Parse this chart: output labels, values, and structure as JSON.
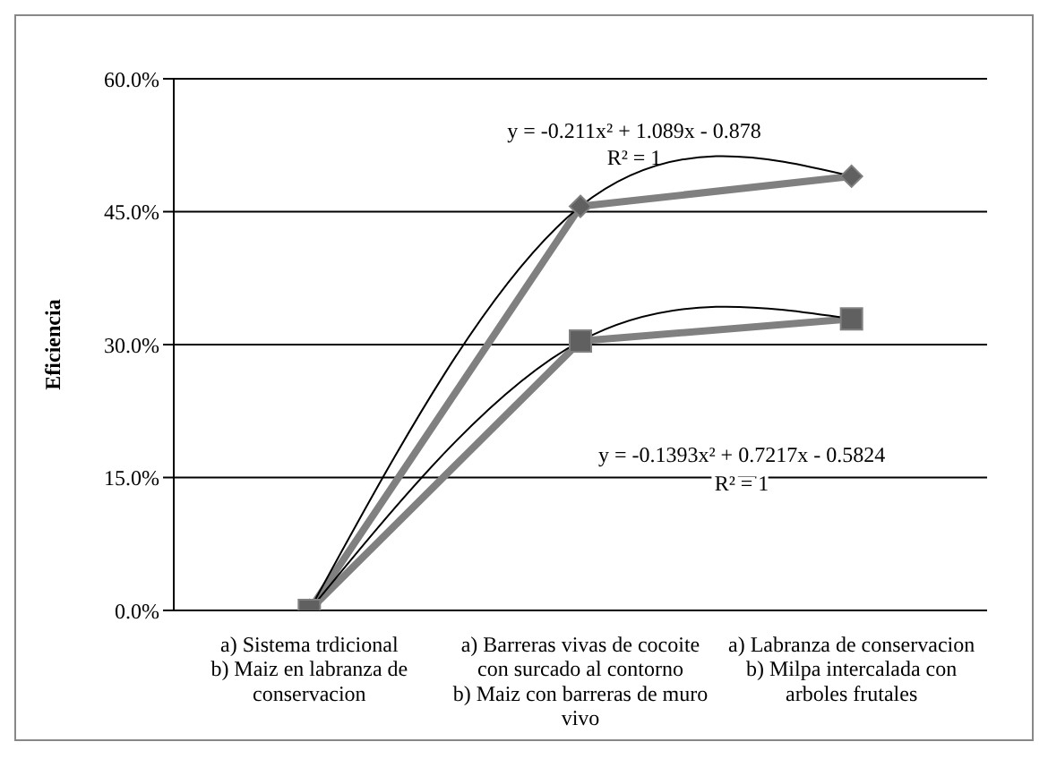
{
  "chart_data": {
    "type": "line",
    "ylabel": "Eficiencia",
    "categories": [
      "a) Sistema trdicional\nb) Maiz en labranza de conservacion",
      "a) Barreras vivas de cocoite con surcado al contorno\nb) Maiz con barreras de muro vivo",
      "a) Labranza de conservacion\nb) Milpa intercalada con arboles frutales"
    ],
    "series": [
      {
        "color": "#808080",
        "values": [
          0,
          0.456,
          0.49
        ],
        "marker": "diamond"
      },
      {
        "color": "#808080",
        "values": [
          0,
          0.304,
          0.329
        ],
        "marker": "square"
      },
      {
        "type": "line",
        "color": "#000000",
        "marker": "none",
        "values": [
          0,
          0.456,
          0.49
        ]
      },
      {
        "type": "line",
        "color": "#000000",
        "marker": "none",
        "values": [
          0,
          0.304,
          0.329
        ]
      }
    ],
    "ylim": [
      0,
      0.6
    ],
    "yticks": [
      {
        "value": 0,
        "label": "0.0%"
      },
      {
        "value": 0.15,
        "label": "15.0%"
      },
      {
        "value": 0.3,
        "label": "30.0%"
      },
      {
        "value": 0.45,
        "label": "45.0%"
      },
      {
        "value": 0.6,
        "label": "60.0%"
      }
    ],
    "grid": "y",
    "legend": false,
    "line_style": "solid",
    "annotations": [
      "y = -0.211x² + 1.089x - 0.878",
      "R² = 1",
      "y = -0.1393x² + 0.7217x - 0.5824",
      "R² = 1"
    ]
  }
}
